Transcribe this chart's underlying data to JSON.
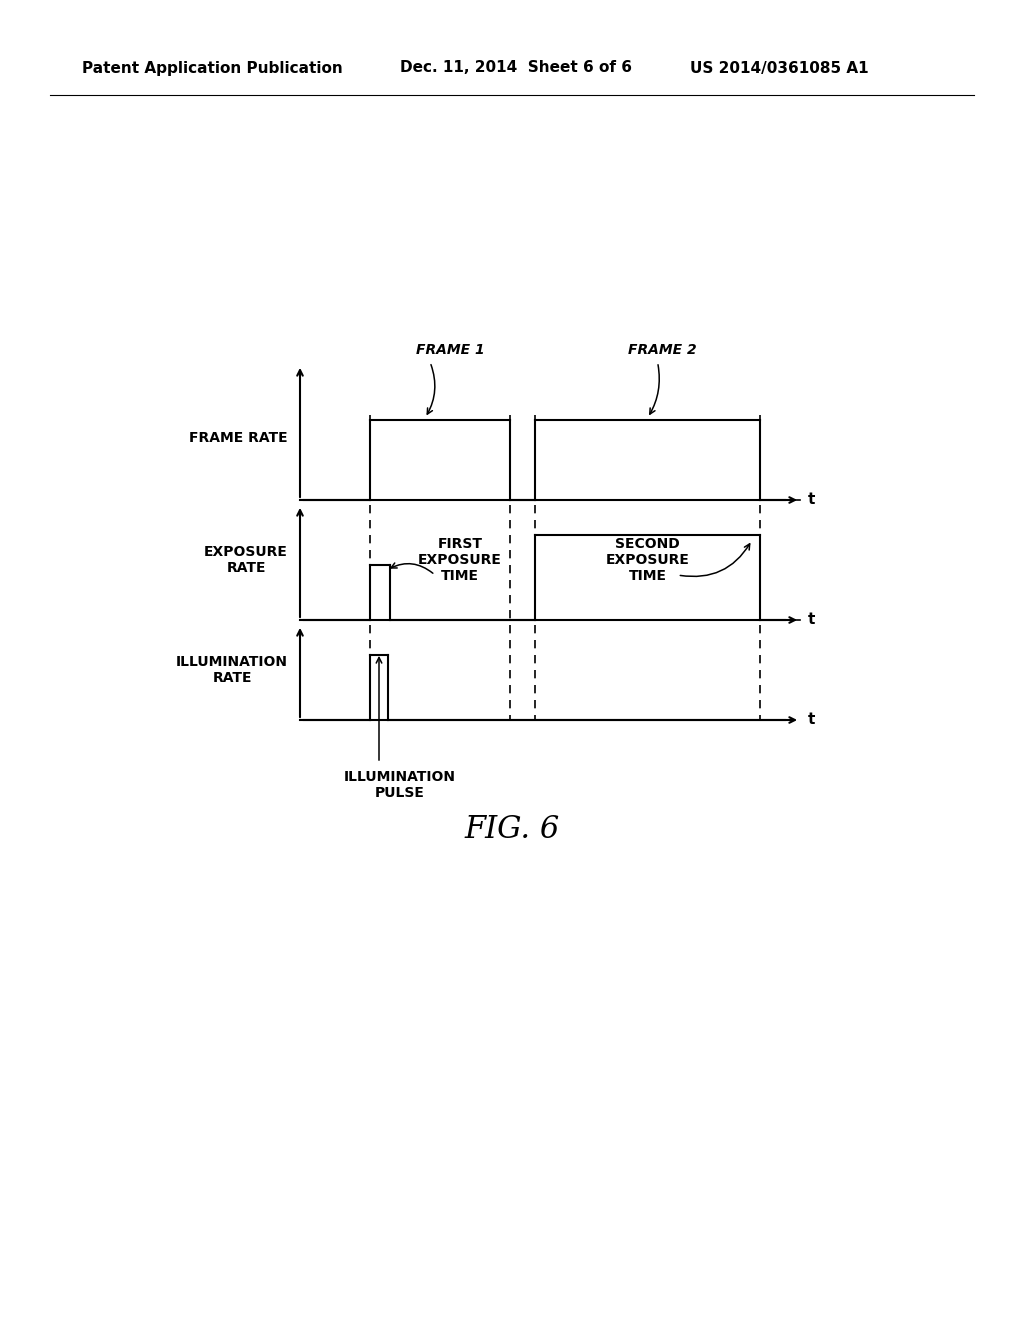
{
  "background_color": "#ffffff",
  "header_left": "Patent Application Publication",
  "header_mid": "Dec. 11, 2014  Sheet 6 of 6",
  "header_right": "US 2014/0361085 A1",
  "header_fontsize": 11,
  "fig_caption": "FIG. 6",
  "fig_caption_fontsize": 22,
  "label_frame_rate": "FRAME RATE",
  "label_exposure_rate": "EXPOSURE\nRATE",
  "label_illumination_rate": "ILLUMINATION\nRATE",
  "label_frame1": "FRAME 1",
  "label_frame2": "FRAME 2",
  "label_first_exposure": "FIRST\nEXPOSURE\nTIME",
  "label_second_exposure": "SECOND\nEXPOSURE\nTIME",
  "label_illum_pulse": "ILLUMINATION\nPULSE",
  "label_t": "t",
  "axis_label_fontsize": 10,
  "diagram_label_fontsize": 9,
  "frame_label_fontsize": 9
}
